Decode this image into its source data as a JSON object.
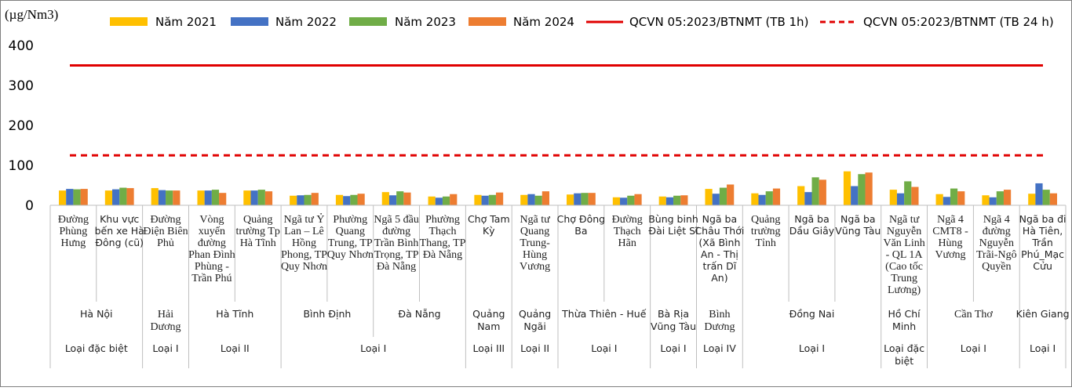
{
  "chart_data": {
    "type": "bar",
    "unit_label": "(µg/Nm3)",
    "ylim": [
      0,
      400
    ],
    "yticks": [
      0,
      100,
      200,
      300,
      400
    ],
    "grid": false,
    "legend_placement": "top",
    "series": [
      {
        "name": "Năm 2021",
        "color": "#FFC000",
        "values": [
          37,
          37,
          43,
          37,
          37,
          24,
          26,
          33,
          22,
          26,
          26,
          27,
          20,
          22,
          41,
          30,
          48,
          85,
          39,
          28,
          25,
          29
        ]
      },
      {
        "name": "Năm 2022",
        "color": "#4472C4",
        "values": [
          41,
          40,
          38,
          37,
          37,
          25,
          23,
          25,
          19,
          24,
          28,
          30,
          19,
          20,
          29,
          26,
          33,
          48,
          30,
          21,
          20,
          55
        ]
      },
      {
        "name": "Năm 2023",
        "color": "#70AD47",
        "values": [
          40,
          44,
          37,
          39,
          39,
          26,
          26,
          35,
          22,
          26,
          24,
          31,
          24,
          24,
          44,
          35,
          70,
          78,
          60,
          42,
          35,
          39
        ]
      },
      {
        "name": "Năm 2024",
        "color": "#ED7D31",
        "values": [
          41,
          43,
          37,
          31,
          35,
          31,
          29,
          32,
          28,
          32,
          35,
          31,
          28,
          25,
          52,
          42,
          64,
          82,
          46,
          35,
          39,
          30
        ]
      }
    ],
    "reference_lines": [
      {
        "name": "QCVN 05:2023/BTNMT (TB 1h)",
        "value": 350,
        "color": "#E00000",
        "style": "solid"
      },
      {
        "name": "QCVN 05:2023/BTNMT (TB 24 h)",
        "value": 125,
        "color": "#E00000",
        "style": "dashed"
      }
    ],
    "categories": [
      "Đường Phùng Hưng",
      "Khu vực bến xe Hà Đông (cũ)",
      "Đường Điện Biên Phủ",
      "Vòng xuyến đường Phan Đình Phùng - Trần Phú",
      "Quảng trường Tp Hà Tĩnh",
      "Ngã tư Ỷ Lan – Lê Hồng Phong, TP Quy Nhơn",
      "Phường Quang Trung, TP Quy Nhơn",
      "Ngã 5 đầu đường Trần Bình Trọng, TP Đà Nẵng",
      "Phường Thạch Thang, TP Đà Nẵng",
      "Chợ Tam Kỳ",
      "Ngã tư Quang Trung-Hùng Vương",
      "Chợ Đông Ba",
      "Đường Thạch Hãn",
      "Bùng binh Đài Liệt Sĩ",
      "Ngã ba Châu Thới (Xã Bình An - Thị trấn Dĩ An)",
      "Quảng trường Tỉnh",
      "Ngã ba Dầu Giây",
      "Ngã ba Vũng Tàu",
      "Ngã tư Nguyễn Văn Linh - QL 1A (Cao tốc Trung Lương)",
      "Ngã 4 CMT8 - Hùng Vương",
      "Ngã 4 đường Nguyễn Trãi-Ngô Quyền",
      "Ngã ba đi Hà Tiên, Trần Phú_Mạc Cửu"
    ],
    "category_lines": [
      [
        "Đường",
        "Phùng",
        "Hưng"
      ],
      [
        "Khu vực",
        "bến xe Hà",
        "Đông (cũ)"
      ],
      [
        "Đường",
        "Điện Biên",
        "Phủ"
      ],
      [
        "Vòng",
        "xuyến",
        "đường",
        "Phan Đình",
        "Phùng -",
        "Trần Phú"
      ],
      [
        "Quảng",
        "trường Tp",
        "Hà Tĩnh"
      ],
      [
        "Ngã tư Ỷ",
        "Lan – Lê",
        "Hồng",
        "Phong, TP",
        "Quy Nhơn"
      ],
      [
        "Phường",
        "Quang",
        "Trung, TP",
        "Quy Nhơn"
      ],
      [
        "Ngã 5 đầu",
        "đường",
        "Trần Bình",
        "Trọng, TP",
        "Đà Nẵng"
      ],
      [
        "Phường",
        "Thạch",
        "Thang, TP",
        "Đà Nẵng"
      ],
      [
        "Chợ Tam",
        "Kỳ"
      ],
      [
        "Ngã tư",
        "Quang",
        "Trung-",
        "Hùng",
        "Vương"
      ],
      [
        "Chợ Đông",
        "Ba"
      ],
      [
        "Đường",
        "Thạch",
        "Hãn"
      ],
      [
        "Bùng binh",
        "Đài Liệt Sĩ"
      ],
      [
        "Ngã ba",
        "Châu Thới",
        "(Xã Bình",
        "An - Thị",
        "trấn Dĩ",
        "An)"
      ],
      [
        "Quảng",
        "trường",
        "Tỉnh"
      ],
      [
        "Ngã ba",
        "Dầu Giây"
      ],
      [
        "Ngã ba",
        "Vũng Tàu"
      ],
      [
        "Ngã tư",
        "Nguyễn",
        "Văn Linh",
        "- QL 1A",
        "(Cao tốc",
        "Trung",
        "Lương)"
      ],
      [
        "Ngã 4",
        "CMT8 -",
        "Hùng",
        "Vương"
      ],
      [
        "Ngã 4",
        "đường",
        "Nguyễn",
        "Trãi-Ngô",
        "Quyền"
      ],
      [
        "Ngã ba đi",
        "Hà Tiên,",
        "Trần",
        "Phú_Mạc",
        "Cửu"
      ]
    ],
    "category_serif": [
      true,
      false,
      true,
      true,
      true,
      true,
      true,
      true,
      true,
      false,
      true,
      false,
      true,
      false,
      false,
      true,
      false,
      false,
      true,
      true,
      true,
      false
    ],
    "provinces": [
      {
        "lines": [
          "Hà Nội"
        ],
        "start": 0,
        "end": 1,
        "serif": false
      },
      {
        "lines": [
          "Hải",
          "Dương"
        ],
        "start": 2,
        "end": 2,
        "serif": true
      },
      {
        "lines": [
          "Hà Tĩnh"
        ],
        "start": 3,
        "end": 4,
        "serif": false
      },
      {
        "lines": [
          "Bình Định"
        ],
        "start": 5,
        "end": 6,
        "serif": false
      },
      {
        "lines": [
          "Đà Nẵng"
        ],
        "start": 7,
        "end": 8,
        "serif": false
      },
      {
        "lines": [
          "Quảng",
          "Nam"
        ],
        "start": 9,
        "end": 9,
        "serif": false
      },
      {
        "lines": [
          "Quảng",
          "Ngãi"
        ],
        "start": 10,
        "end": 10,
        "serif": false
      },
      {
        "lines": [
          "Thừa Thiên - Huế"
        ],
        "start": 11,
        "end": 12,
        "serif": false
      },
      {
        "lines": [
          "Bà Rịa",
          "Vũng Tàu"
        ],
        "start": 13,
        "end": 13,
        "serif": false
      },
      {
        "lines": [
          "Bình",
          "Dương"
        ],
        "start": 14,
        "end": 14,
        "serif": true
      },
      {
        "lines": [
          "Đồng Nai"
        ],
        "start": 15,
        "end": 17,
        "serif": false
      },
      {
        "lines": [
          "Hồ Chí",
          "Minh"
        ],
        "start": 18,
        "end": 18,
        "serif": false
      },
      {
        "lines": [
          "Cần Thơ"
        ],
        "start": 19,
        "end": 20,
        "serif": true
      },
      {
        "lines": [
          "Kiên Giang"
        ],
        "start": 21,
        "end": 21,
        "serif": false
      }
    ],
    "city_types": [
      {
        "lines": [
          "Loại đặc biệt"
        ],
        "start": 0,
        "end": 1
      },
      {
        "lines": [
          "Loại I"
        ],
        "start": 2,
        "end": 2
      },
      {
        "lines": [
          "Loại II"
        ],
        "start": 3,
        "end": 4
      },
      {
        "lines": [
          "Loại I"
        ],
        "start": 5,
        "end": 8
      },
      {
        "lines": [
          "Loại III"
        ],
        "start": 9,
        "end": 9
      },
      {
        "lines": [
          "Loại II"
        ],
        "start": 10,
        "end": 10
      },
      {
        "lines": [
          "Loại I"
        ],
        "start": 11,
        "end": 12
      },
      {
        "lines": [
          "Loại I"
        ],
        "start": 13,
        "end": 13
      },
      {
        "lines": [
          "Loại IV"
        ],
        "start": 14,
        "end": 14
      },
      {
        "lines": [
          "Loại I"
        ],
        "start": 15,
        "end": 17
      },
      {
        "lines": [
          "Loại đặc",
          "biệt"
        ],
        "start": 18,
        "end": 18
      },
      {
        "lines": [
          "Loại I"
        ],
        "start": 19,
        "end": 20
      },
      {
        "lines": [
          "Loại I"
        ],
        "start": 21,
        "end": 21
      }
    ]
  }
}
